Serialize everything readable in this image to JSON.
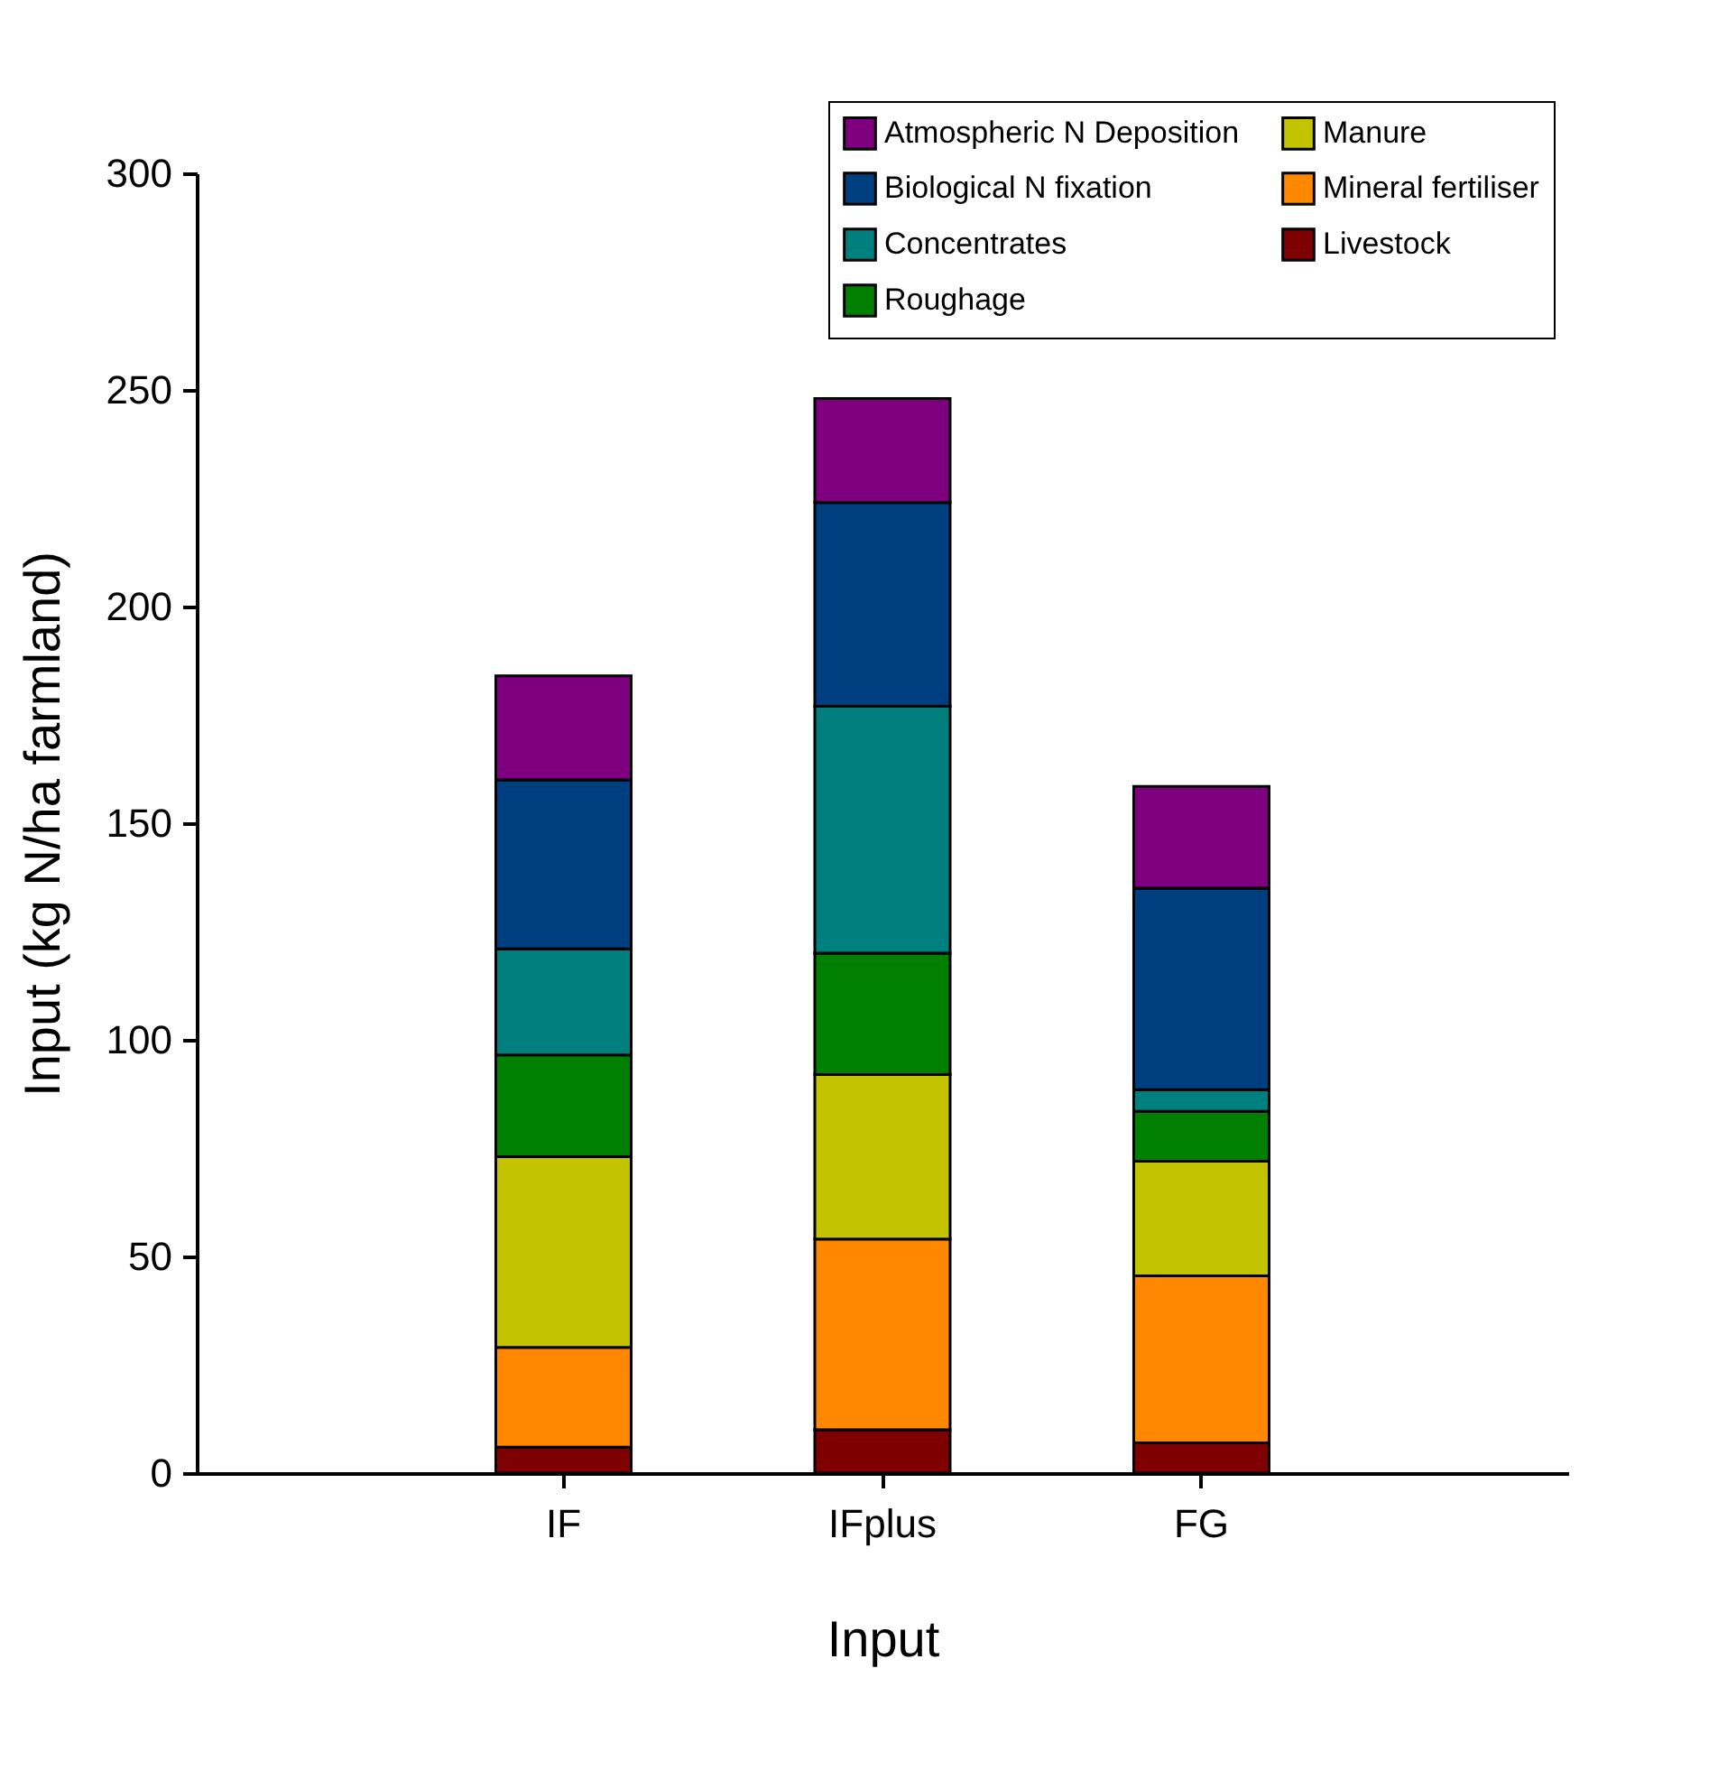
{
  "chart_data": {
    "type": "bar",
    "stacked": true,
    "xlabel": "Input",
    "ylabel": "Input  (kg N/ha farmland)",
    "categories": [
      "IF",
      "IFplus",
      "FG"
    ],
    "series": [
      {
        "name": "Livestock",
        "color": "#7f0000",
        "values": [
          6,
          10,
          7
        ]
      },
      {
        "name": "Mineral fertiliser",
        "color": "#ff8800",
        "values": [
          23,
          44,
          38.5
        ]
      },
      {
        "name": "Manure",
        "color": "#c3c300",
        "values": [
          44,
          38,
          26.5
        ]
      },
      {
        "name": "Roughage",
        "color": "#007f00",
        "values": [
          23.5,
          28,
          11.5
        ]
      },
      {
        "name": "Concentrates",
        "color": "#007f7f",
        "values": [
          24.5,
          57,
          5
        ]
      },
      {
        "name": "Biological N fixation",
        "color": "#003f7f",
        "values": [
          39,
          47,
          46.5
        ]
      },
      {
        "name": "Atmospheric N Deposition",
        "color": "#7f007f",
        "values": [
          24,
          24,
          23.5
        ]
      }
    ],
    "ylim": [
      0,
      300
    ],
    "yticks": [
      0,
      50,
      100,
      150,
      200,
      250,
      300
    ],
    "legend": "top right",
    "grid": false
  }
}
